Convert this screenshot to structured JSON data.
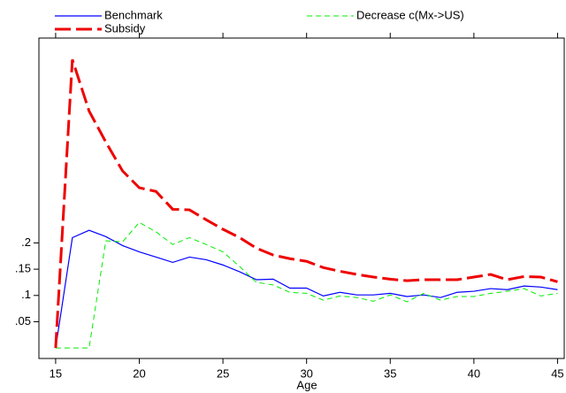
{
  "chart_data": {
    "type": "line",
    "x_label": "Age",
    "x": [
      15,
      16,
      17,
      18,
      19,
      20,
      21,
      22,
      23,
      24,
      25,
      26,
      27,
      28,
      29,
      30,
      31,
      32,
      33,
      34,
      35,
      36,
      37,
      38,
      39,
      40,
      41,
      42,
      43,
      44,
      45
    ],
    "series": [
      {
        "name": "Benchmark",
        "color": "#0000ff",
        "dash": "solid",
        "values": [
          0,
          0.21,
          0.224,
          0.212,
          0.195,
          0.183,
          0.173,
          0.163,
          0.173,
          0.168,
          0.158,
          0.145,
          0.13,
          0.131,
          0.114,
          0.114,
          0.099,
          0.106,
          0.101,
          0.101,
          0.104,
          0.098,
          0.101,
          0.096,
          0.106,
          0.108,
          0.113,
          0.111,
          0.118,
          0.116,
          0.111
        ]
      },
      {
        "name": "Decrease c(Mx->US)",
        "color": "#00ee00",
        "dash": "short",
        "values": [
          0,
          0,
          0,
          0.204,
          0.202,
          0.239,
          0.221,
          0.197,
          0.21,
          0.197,
          0.183,
          0.155,
          0.125,
          0.12,
          0.106,
          0.104,
          0.091,
          0.099,
          0.096,
          0.089,
          0.101,
          0.088,
          0.104,
          0.091,
          0.098,
          0.098,
          0.104,
          0.108,
          0.113,
          0.099,
          0.104
        ]
      },
      {
        "name": "Subsidy",
        "color": "#ee0000",
        "dash": "long",
        "values": [
          0,
          0.549,
          0.451,
          0.392,
          0.337,
          0.305,
          0.298,
          0.264,
          0.263,
          0.244,
          0.226,
          0.21,
          0.19,
          0.177,
          0.17,
          0.165,
          0.153,
          0.146,
          0.14,
          0.135,
          0.131,
          0.128,
          0.13,
          0.13,
          0.13,
          0.135,
          0.14,
          0.13,
          0.136,
          0.135,
          0.126
        ]
      }
    ],
    "xlim": [
      14,
      45.4
    ],
    "ylim": [
      -0.02,
      0.59
    ],
    "xticks": [
      15,
      20,
      25,
      30,
      35,
      40,
      45
    ],
    "yticks": [
      {
        "value": 0.05,
        "label": ".05"
      },
      {
        "value": 0.1,
        "label": ".1"
      },
      {
        "value": 0.15,
        "label": ".15"
      },
      {
        "value": 0.2,
        "label": ".2"
      }
    ]
  }
}
